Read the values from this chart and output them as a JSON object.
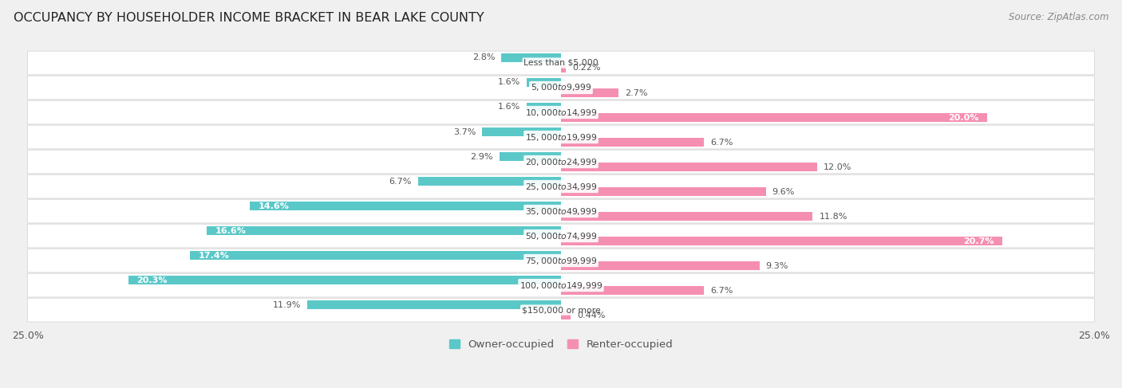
{
  "title": "OCCUPANCY BY HOUSEHOLDER INCOME BRACKET IN BEAR LAKE COUNTY",
  "source": "Source: ZipAtlas.com",
  "categories": [
    "Less than $5,000",
    "$5,000 to $9,999",
    "$10,000 to $14,999",
    "$15,000 to $19,999",
    "$20,000 to $24,999",
    "$25,000 to $34,999",
    "$35,000 to $49,999",
    "$50,000 to $74,999",
    "$75,000 to $99,999",
    "$100,000 to $149,999",
    "$150,000 or more"
  ],
  "owner_values": [
    2.8,
    1.6,
    1.6,
    3.7,
    2.9,
    6.7,
    14.6,
    16.6,
    17.4,
    20.3,
    11.9
  ],
  "renter_values": [
    0.22,
    2.7,
    20.0,
    6.7,
    12.0,
    9.6,
    11.8,
    20.7,
    9.3,
    6.7,
    0.44
  ],
  "owner_color": "#5BC8C8",
  "renter_color": "#F58FB1",
  "owner_label": "Owner-occupied",
  "renter_label": "Renter-occupied",
  "xlim": 25.0,
  "background_color": "#f0f0f0",
  "bar_background": "#ffffff",
  "title_fontsize": 11.5,
  "source_fontsize": 8.5,
  "tick_fontsize": 9,
  "label_fontsize": 8,
  "cat_fontsize": 7.8
}
